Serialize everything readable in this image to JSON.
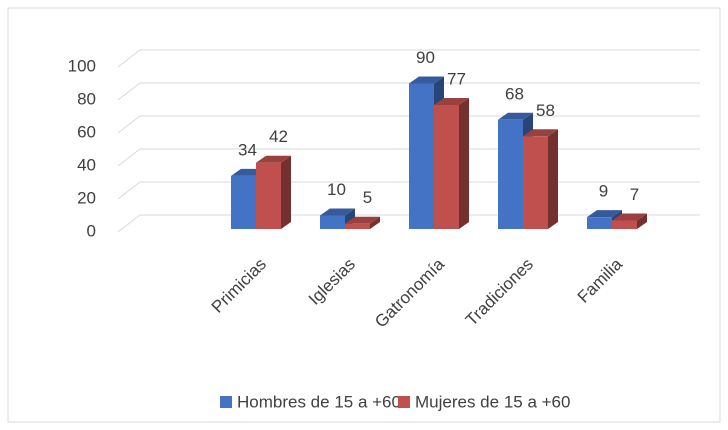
{
  "chart_data": {
    "type": "bar3d",
    "categories": [
      "Primicias",
      "Iglesias",
      "Gatronomía",
      "Tradiciones",
      "Familia"
    ],
    "series": [
      {
        "name": "Hombres de 15 a +60",
        "color": "#4472c4",
        "values": [
          34,
          10,
          90,
          68,
          9
        ]
      },
      {
        "name": "Mujeres de 15 a +60",
        "color": "#c0504d",
        "values": [
          42,
          5,
          77,
          58,
          7
        ]
      }
    ],
    "ylim": [
      0,
      100
    ],
    "yticks": [
      0,
      20,
      40,
      60,
      80,
      100
    ],
    "grid": true,
    "legend": "bottom"
  }
}
